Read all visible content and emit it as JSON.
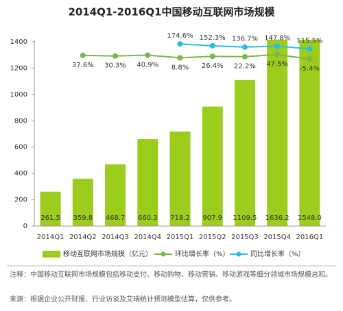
{
  "chart_data": {
    "type": "combo",
    "title": "2014Q1-2016Q1中国移动互联网市场规模",
    "categories": [
      "2014Q1",
      "2014Q2",
      "2014Q3",
      "2014Q4",
      "2015Q1",
      "2015Q2",
      "2015Q3",
      "2015Q4",
      "2016Q1"
    ],
    "series": [
      {
        "name": "移动互联网市场规模（亿元）",
        "type": "bar",
        "color": "#9ccc1c",
        "values": [
          261.5,
          359.8,
          468.7,
          660.3,
          718.2,
          907.9,
          1109.5,
          1636.2,
          1548.0
        ],
        "value_labels": [
          "261.5",
          "359.8",
          "468.7",
          "660.3",
          "718.2",
          "907.9",
          "1109.5",
          "1636.2",
          "1548.0"
        ]
      },
      {
        "name": "环比增长率（%）",
        "type": "line",
        "axis": "y2",
        "color": "#7ab648",
        "values": [
          null,
          37.6,
          30.3,
          40.9,
          8.8,
          26.4,
          22.2,
          47.5,
          -5.4
        ],
        "value_labels": [
          null,
          "37.6%",
          "30.3%",
          "40.9%",
          "8.8%",
          "26.4%",
          "22.2%",
          "47.5%",
          "-5.4%"
        ]
      },
      {
        "name": "同比增长率（%）",
        "type": "line",
        "axis": "y2",
        "color": "#22bde8",
        "values": [
          null,
          null,
          null,
          null,
          174.6,
          152.3,
          136.7,
          147.8,
          115.5
        ],
        "value_labels": [
          null,
          null,
          null,
          null,
          "174.6%",
          "152.3%",
          "136.7%",
          "147.8%",
          "115.5%"
        ]
      }
    ],
    "ylim": [
      0,
      1400
    ],
    "yticks": [
      0,
      200,
      400,
      600,
      800,
      1000,
      1200,
      1400
    ],
    "y2lim": [
      -2000,
      200
    ],
    "grid": false
  },
  "notes": {
    "note": "注释：中国移动互联网市场规模包括移动支付、移动购物、移动营销、移动游戏等细分领域市场规模总和。",
    "source": "来源：根据企业公开财报、行业访谈及艾瑞统计预测模型估算，仅供参考。"
  }
}
